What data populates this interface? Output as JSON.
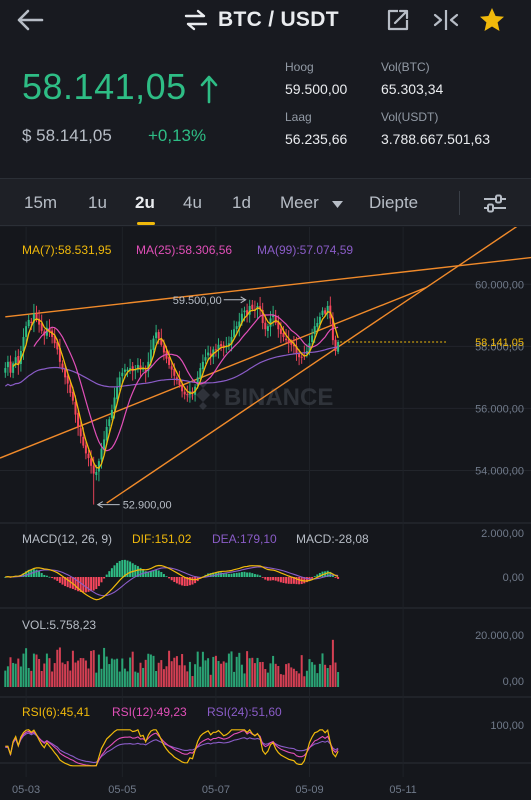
{
  "header": {
    "title": "BTC / USDT",
    "back_icon": "arrow-left-icon",
    "swap_icon": "swap-arrows-icon",
    "share_icon": "share-icon",
    "compare_icon": "compare-arrows-icon",
    "favorite_icon": "star-icon"
  },
  "ticker": {
    "last_price": "58.141,05",
    "fiat_price": "$ 58.141,05",
    "change": "+0,13%",
    "high_label": "Hoog",
    "high_value": "59.500,00",
    "low_label": "Laag",
    "low_value": "56.235,66",
    "vol_base_label": "Vol(BTC)",
    "vol_base_value": "65.303,34",
    "vol_quote_label": "Vol(USDT)",
    "vol_quote_value": "3.788.667.501,63"
  },
  "timeframes": {
    "items": [
      "15m",
      "1u",
      "2u",
      "4u",
      "1d",
      "Meer",
      "Diepte"
    ],
    "active": "2u",
    "settings_icon": "sliders-icon"
  },
  "colors": {
    "up": "#2ebd85",
    "down": "#f6465d",
    "ma7": "#f0b90b",
    "ma25": "#e14fb8",
    "ma99": "#8a5cc7",
    "trendline": "#f08a2a",
    "accent": "#f0b90b"
  },
  "labels": {
    "ma7": "MA(7):58.531,95",
    "ma25": "MA(25):58.306,56",
    "ma99": "MA(99):57.074,59",
    "macd_params": "MACD(12, 26, 9)",
    "dif": "DIF:151,02",
    "dea": "DEA:179,10",
    "macd": "MACD:-28,08",
    "vol": "VOL:5.758,23",
    "rsi6": "RSI(6):45,41",
    "rsi12": "RSI(12):49,23",
    "rsi24": "RSI(24):51,60",
    "high_marker": "59.500,00",
    "low_marker": "52.900,00",
    "last_marker": "58.141,05",
    "watermark": "BINANCE"
  },
  "chart_data": {
    "type": "candlestick",
    "price_ticks": [
      "60.000,00",
      "58.000,00",
      "56.000,00",
      "54.000,00"
    ],
    "price_tick_values": [
      60000,
      58000,
      56000,
      54000
    ],
    "macd_ticks": [
      "2.000,00",
      "0,00"
    ],
    "vol_ticks": [
      "20.000,00",
      "0,00"
    ],
    "rsi_ticks": [
      "100,00"
    ],
    "x_ticks": [
      "05-03",
      "05-05",
      "05-07",
      "05-09",
      "05-11"
    ],
    "x_tick_candle_index": [
      8,
      45,
      81,
      117,
      153
    ],
    "y_range": [
      52500,
      60750
    ],
    "closes": [
      57300,
      57500,
      57150,
      57450,
      57650,
      57400,
      57850,
      58300,
      58650,
      58850,
      58750,
      59050,
      58900,
      58700,
      58500,
      58350,
      58600,
      58450,
      58300,
      58100,
      57900,
      57500,
      57250,
      57000,
      56800,
      56500,
      56250,
      55800,
      55400,
      55100,
      54800,
      54550,
      54400,
      54150,
      53900,
      53950,
      54300,
      54700,
      55000,
      55400,
      55650,
      55950,
      56350,
      56700,
      57000,
      57150,
      57250,
      57250,
      57300,
      57200,
      57250,
      57400,
      57250,
      57300,
      57150,
      57500,
      57900,
      58250,
      58450,
      58250,
      58050,
      57800,
      57600,
      57400,
      57250,
      57050,
      56900,
      56750,
      56550,
      56450,
      56450,
      56550,
      56500,
      56700,
      57000,
      57300,
      57500,
      57650,
      57800,
      57700,
      57900,
      57900,
      58050,
      58000,
      57950,
      58000,
      58100,
      58300,
      58550,
      58650,
      58800,
      59050,
      59150,
      59000,
      59300,
      59200,
      59150,
      59300,
      59200,
      58750,
      58550,
      58650,
      58900,
      59000,
      58750,
      58550,
      58400,
      58300,
      58200,
      58100,
      58050,
      58000,
      57750,
      57650,
      57650,
      57700,
      57850,
      58100,
      58350,
      58650,
      58750,
      58950,
      59150,
      59050,
      59300,
      58900,
      58200,
      57850,
      58141
    ],
    "high": 59500,
    "low": 52900,
    "last": 58141.05,
    "ma7_last": 58531.95,
    "ma25_last": 58306.56,
    "ma99_last": 57074.59,
    "dif_last": 151.02,
    "dea_last": 179.1,
    "macd_last": -28.08,
    "vol_last": 5758.23,
    "vol_range": [
      0,
      20000
    ],
    "rsi6_last": 45.41,
    "rsi12_last": 49.23,
    "rsi24_last": 51.6,
    "rsi_range": [
      0,
      100
    ],
    "resistance_line": [
      {
        "i": 0,
        "price": 58950
      },
      {
        "i": 162,
        "price": 60480
      }
    ],
    "support_line": [
      {
        "i": 0,
        "price": 54400
      },
      {
        "i": 162,
        "price": 59900
      }
    ],
    "support_line_drawn": [
      {
        "i": 39,
        "price": 52950
      },
      {
        "i": 162,
        "price": 59900
      }
    ]
  }
}
